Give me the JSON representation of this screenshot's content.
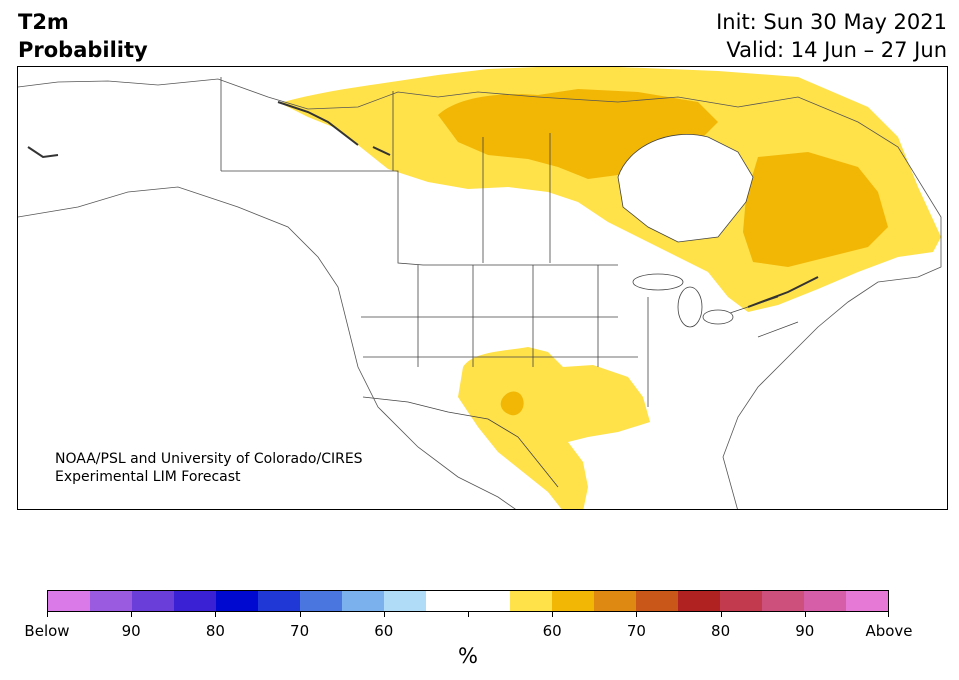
{
  "title": {
    "line1": "T2m",
    "line2": "Probability"
  },
  "dates": {
    "init": "Init: Sun 30 May 2021",
    "valid": "Valid: 14 Jun – 27 Jun"
  },
  "credit": {
    "line1": "NOAA/PSL and University of Colorado/CIRES",
    "line2": "Experimental LIM Forecast"
  },
  "map": {
    "region": "North America",
    "probability_field": [
      {
        "category": "Above",
        "probability": "50-60%",
        "color": "#ffe14a",
        "area": "central/northern Canada band to Quebec and Atlantic Canada"
      },
      {
        "category": "Above",
        "probability": "60-70%",
        "color": "#f2b705",
        "area": "Nunavut/Hudson Bay region"
      },
      {
        "category": "Above",
        "probability": "60-70%",
        "color": "#f2b705",
        "area": "Quebec/Labrador"
      },
      {
        "category": "Above",
        "probability": "50-60%",
        "color": "#ffe14a",
        "area": "southern Plains, Texas, northern Mexico"
      },
      {
        "category": "Above",
        "probability": "60-70%",
        "color": "#f2b705",
        "area": "small spot in west Texas"
      }
    ]
  },
  "colorbar": {
    "colors": [
      "#d97ae8",
      "#9b5be0",
      "#6a3ed8",
      "#3a22d4",
      "#0009cf",
      "#2038d6",
      "#4a76e0",
      "#7bb2ee",
      "#b0dcf8",
      "#ffffff",
      "#ffffff",
      "#ffe14a",
      "#f2b705",
      "#de8a12",
      "#c9571a",
      "#b02222",
      "#c13a4e",
      "#cc4f7c",
      "#d65ea8",
      "#e678d6"
    ],
    "ticks": [
      "Below",
      "90",
      "80",
      "70",
      "60",
      "",
      "60",
      "70",
      "80",
      "90",
      "Above"
    ],
    "unit": "%"
  }
}
